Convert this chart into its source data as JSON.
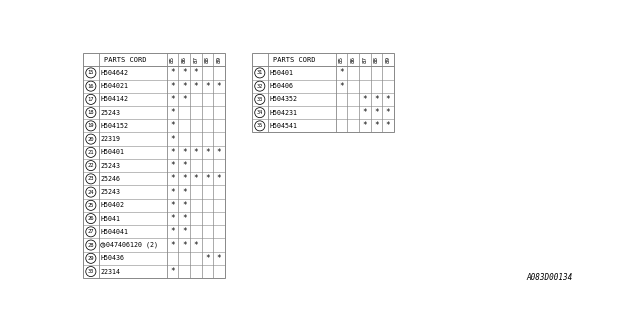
{
  "left_table": {
    "header": [
      "PARTS CORD",
      "85",
      "86",
      "87",
      "88",
      "89"
    ],
    "rows": [
      {
        "num": 15,
        "part": "H504642",
        "cols": [
          1,
          1,
          1,
          0,
          0
        ]
      },
      {
        "num": 16,
        "part": "H504021",
        "cols": [
          1,
          1,
          1,
          1,
          1
        ]
      },
      {
        "num": 17,
        "part": "H504142",
        "cols": [
          1,
          1,
          0,
          0,
          0
        ]
      },
      {
        "num": 18,
        "part": "25243",
        "cols": [
          1,
          0,
          0,
          0,
          0
        ]
      },
      {
        "num": 19,
        "part": "H504152",
        "cols": [
          1,
          0,
          0,
          0,
          0
        ]
      },
      {
        "num": 20,
        "part": "22319",
        "cols": [
          1,
          0,
          0,
          0,
          0
        ]
      },
      {
        "num": 21,
        "part": "H50401",
        "cols": [
          1,
          1,
          1,
          1,
          1
        ]
      },
      {
        "num": 22,
        "part": "25243",
        "cols": [
          1,
          1,
          0,
          0,
          0
        ]
      },
      {
        "num": 23,
        "part": "25246",
        "cols": [
          1,
          1,
          1,
          1,
          1
        ]
      },
      {
        "num": 24,
        "part": "25243",
        "cols": [
          1,
          1,
          0,
          0,
          0
        ]
      },
      {
        "num": 25,
        "part": "H50402",
        "cols": [
          1,
          1,
          0,
          0,
          0
        ]
      },
      {
        "num": 26,
        "part": "H5041",
        "cols": [
          1,
          1,
          0,
          0,
          0
        ]
      },
      {
        "num": 27,
        "part": "H504041",
        "cols": [
          1,
          1,
          0,
          0,
          0
        ]
      },
      {
        "num": 28,
        "part": "S047406120 (2)",
        "cols": [
          1,
          1,
          1,
          0,
          0
        ]
      },
      {
        "num": 29,
        "part": "H50436",
        "cols": [
          0,
          0,
          0,
          1,
          1
        ]
      },
      {
        "num": 30,
        "part": "22314",
        "cols": [
          1,
          0,
          0,
          0,
          0
        ]
      }
    ]
  },
  "right_table": {
    "header": [
      "PARTS CORD",
      "85",
      "86",
      "87",
      "88",
      "89"
    ],
    "rows": [
      {
        "num": 31,
        "part": "H50401",
        "cols": [
          1,
          0,
          0,
          0,
          0
        ]
      },
      {
        "num": 32,
        "part": "H50406",
        "cols": [
          1,
          0,
          0,
          0,
          0
        ]
      },
      {
        "num": 33,
        "part": "H504352",
        "cols": [
          0,
          0,
          1,
          1,
          1
        ]
      },
      {
        "num": 34,
        "part": "H504231",
        "cols": [
          0,
          0,
          1,
          1,
          1
        ]
      },
      {
        "num": 35,
        "part": "H504541",
        "cols": [
          0,
          0,
          1,
          1,
          1
        ]
      }
    ]
  },
  "footer": "A083D00134",
  "bg_color": "#ffffff",
  "line_color": "#888888",
  "text_color": "#000000",
  "num28_special": true
}
